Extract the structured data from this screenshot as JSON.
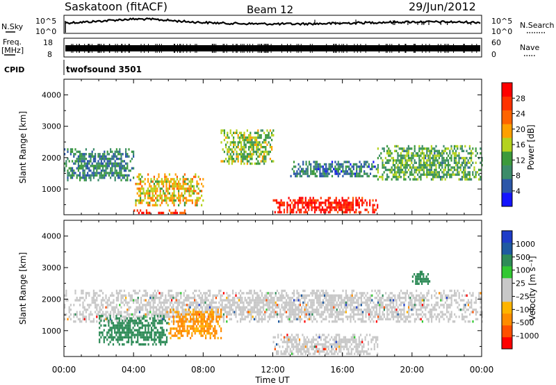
{
  "header": {
    "station": "Saskatoon (fitACF)",
    "beam": "Beam 12",
    "date": "29/Jun/2012"
  },
  "strips": {
    "nsky_label": "N.Sky",
    "nsky_ticks": [
      "10^5",
      "10^0"
    ],
    "nsearch_label": "N.Search",
    "nsearch_ticks": [
      "10^5",
      "10^0"
    ],
    "freq_label": "Freq.",
    "freq_unit": "[MHz]",
    "freq_ticks": [
      "18",
      "8"
    ],
    "nave_label": "Nave",
    "nave_ticks": [
      "60",
      "0"
    ],
    "cpid_label": "CPID",
    "cpid_value": "twofsound 3501"
  },
  "colors": {
    "power_scale": [
      "#1414ff",
      "#2c57a8",
      "#3c8c6a",
      "#3c9a3c",
      "#b4d21e",
      "#ffa000",
      "#ff6400",
      "#ff3200",
      "#ff0000"
    ],
    "velocity_scale": [
      "#ff0000",
      "#ff5000",
      "#ff8c00",
      "#ffb400",
      "#c8c8c8",
      "#c8c8c8",
      "#32c832",
      "#2e8b57",
      "#1e5aa0",
      "#1e3cc8"
    ]
  },
  "chart_data": [
    {
      "type": "heatmap",
      "title": "",
      "xlabel": "",
      "ylabel": "Slant Range [km]",
      "xlim": [
        0,
        24
      ],
      "ylim": [
        180,
        4500
      ],
      "y_ticks": [
        "4000",
        "3000",
        "2000",
        "1000"
      ],
      "colorbar": {
        "label": "Power [dB]",
        "range": [
          0,
          32
        ],
        "ticks": [
          "28",
          "24",
          "20",
          "16",
          "12",
          "8",
          "4"
        ]
      },
      "regions": [
        {
          "t0": 0.0,
          "t1": 4.0,
          "r0": 1250,
          "r1": 2300,
          "level": 9
        },
        {
          "t0": 4.0,
          "t1": 8.0,
          "r0": 500,
          "r1": 1500,
          "level": 18
        },
        {
          "t0": 4.0,
          "t1": 7.0,
          "r0": 200,
          "r1": 350,
          "level": 26
        },
        {
          "t0": 9.0,
          "t1": 12.0,
          "r0": 1800,
          "r1": 2900,
          "level": 14
        },
        {
          "t0": 12.0,
          "t1": 18.0,
          "r0": 250,
          "r1": 750,
          "level": 29
        },
        {
          "t0": 13.0,
          "t1": 18.0,
          "r0": 1400,
          "r1": 1900,
          "level": 8
        },
        {
          "t0": 18.0,
          "t1": 24.0,
          "r0": 1300,
          "r1": 2400,
          "level": 12
        }
      ]
    },
    {
      "type": "heatmap",
      "title": "",
      "xlabel": "Time UT",
      "ylabel": "Slant Range [km]",
      "xlim": [
        0,
        24
      ],
      "ylim": [
        180,
        4500
      ],
      "x_ticks": [
        "00:00",
        "04:00",
        "08:00",
        "12:00",
        "16:00",
        "20:00",
        "00:00"
      ],
      "y_ticks": [
        "4000",
        "3000",
        "2000",
        "1000"
      ],
      "colorbar": {
        "label": "Velocity [m s⁻¹]",
        "ticks": [
          "1000",
          "500",
          "100",
          "25",
          "–25",
          "–100",
          "–500",
          "–1000"
        ]
      },
      "regions": [
        {
          "t0": 0.0,
          "t1": 24.0,
          "r0": 1300,
          "r1": 2300,
          "velocity": 0
        },
        {
          "t0": 2.0,
          "t1": 6.0,
          "r0": 600,
          "r1": 1500,
          "velocity": 250
        },
        {
          "t0": 6.0,
          "t1": 9.0,
          "r0": 800,
          "r1": 1700,
          "velocity": -150
        },
        {
          "t0": 12.0,
          "t1": 18.0,
          "r0": 250,
          "r1": 900,
          "velocity": 0
        },
        {
          "t0": 20.0,
          "t1": 21.0,
          "r0": 2500,
          "r1": 2900,
          "velocity": 300
        }
      ]
    }
  ]
}
